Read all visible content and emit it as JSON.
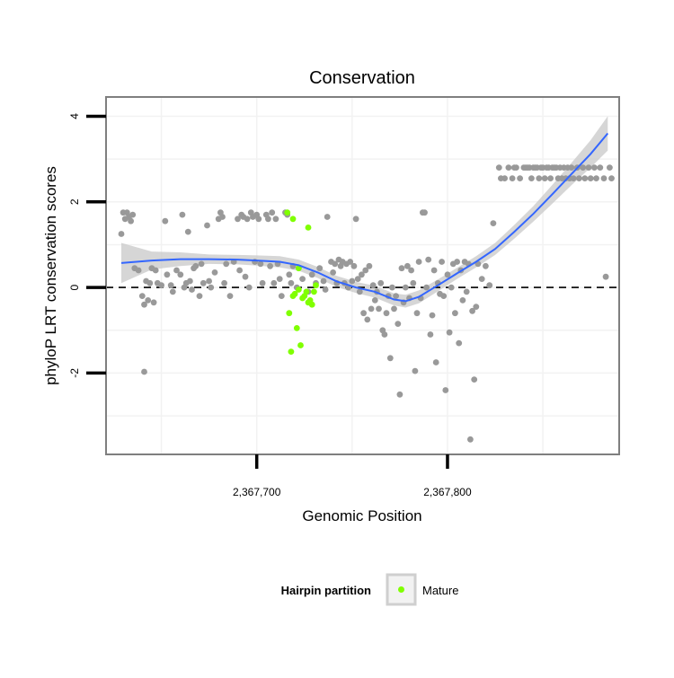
{
  "chart_data": {
    "type": "scatter",
    "title": "Conservation",
    "xlabel": "Genomic Position",
    "ylabel": "phyloP LRT conservation scores",
    "xlim": [
      2367621,
      2367890
    ],
    "ylim": [
      -3.9,
      4.45
    ],
    "x_ticks": [
      2367700,
      2367800
    ],
    "x_tick_labels": [
      "2,367,700",
      "2,367,800"
    ],
    "y_ticks": [
      -2,
      0,
      2,
      4
    ],
    "y_tick_labels": [
      "-2",
      "0",
      "2",
      "4"
    ],
    "reference_line": {
      "y": 0,
      "style": "dashed"
    },
    "grid": true,
    "legend": {
      "title": "Hairpin partition",
      "position": "bottom",
      "entries": [
        "Mature"
      ]
    },
    "colors": {
      "points": "#999999",
      "mature": "#80ff00",
      "smooth": "#3366ff",
      "ribbon": "#c8c8c8",
      "panel_border": "#7f7f7f",
      "grid": "#f2f2f2"
    },
    "series": [
      {
        "name": "",
        "color": "#999999",
        "points": [
          [
            2367630,
            1.75
          ],
          [
            2367631,
            1.6
          ],
          [
            2367632,
            1.75
          ],
          [
            2367633,
            1.65
          ],
          [
            2367634,
            1.55
          ],
          [
            2367635,
            1.7
          ],
          [
            2367629,
            1.25
          ],
          [
            2367636,
            0.45
          ],
          [
            2367638,
            0.4
          ],
          [
            2367640,
            -0.2
          ],
          [
            2367641,
            -0.4
          ],
          [
            2367642,
            0.15
          ],
          [
            2367643,
            -0.3
          ],
          [
            2367644,
            0.1
          ],
          [
            2367645,
            0.45
          ],
          [
            2367646,
            -0.35
          ],
          [
            2367647,
            0.4
          ],
          [
            2367648,
            0.1
          ],
          [
            2367650,
            0.05
          ],
          [
            2367652,
            1.55
          ],
          [
            2367653,
            0.3
          ],
          [
            2367655,
            0.05
          ],
          [
            2367656,
            -0.1
          ],
          [
            2367658,
            0.4
          ],
          [
            2367660,
            0.3
          ],
          [
            2367661,
            1.7
          ],
          [
            2367662,
            0.0
          ],
          [
            2367663,
            0.1
          ],
          [
            2367664,
            1.3
          ],
          [
            2367665,
            0.15
          ],
          [
            2367666,
            -0.05
          ],
          [
            2367667,
            0.45
          ],
          [
            2367668,
            0.5
          ],
          [
            2367670,
            -0.2
          ],
          [
            2367671,
            0.55
          ],
          [
            2367672,
            0.1
          ],
          [
            2367674,
            1.45
          ],
          [
            2367675,
            0.15
          ],
          [
            2367676,
            0.0
          ],
          [
            2367678,
            0.35
          ],
          [
            2367680,
            1.6
          ],
          [
            2367681,
            1.75
          ],
          [
            2367682,
            1.65
          ],
          [
            2367683,
            0.1
          ],
          [
            2367684,
            0.55
          ],
          [
            2367686,
            -0.2
          ],
          [
            2367688,
            0.6
          ],
          [
            2367690,
            1.6
          ],
          [
            2367691,
            0.4
          ],
          [
            2367692,
            1.7
          ],
          [
            2367693,
            1.65
          ],
          [
            2367694,
            0.25
          ],
          [
            2367695,
            1.6
          ],
          [
            2367696,
            0.0
          ],
          [
            2367697,
            1.75
          ],
          [
            2367698,
            1.65
          ],
          [
            2367699,
            0.6
          ],
          [
            2367700,
            1.7
          ],
          [
            2367701,
            1.6
          ],
          [
            2367702,
            0.55
          ],
          [
            2367703,
            0.1
          ],
          [
            2367705,
            1.7
          ],
          [
            2367706,
            1.6
          ],
          [
            2367707,
            0.5
          ],
          [
            2367708,
            1.75
          ],
          [
            2367709,
            0.1
          ],
          [
            2367710,
            1.6
          ],
          [
            2367711,
            0.55
          ],
          [
            2367712,
            0.2
          ],
          [
            2367713,
            -0.2
          ],
          [
            2367715,
            1.75
          ],
          [
            2367716,
            1.7
          ],
          [
            2367717,
            0.3
          ],
          [
            2367718,
            0.1
          ],
          [
            2367719,
            0.5
          ],
          [
            2367721,
            0.0
          ],
          [
            2367724,
            0.2
          ],
          [
            2367727,
            -0.1
          ],
          [
            2367729,
            0.3
          ],
          [
            2367731,
            0.1
          ],
          [
            2367733,
            0.45
          ],
          [
            2367735,
            0.15
          ],
          [
            2367736,
            -0.05
          ],
          [
            2367737,
            1.65
          ],
          [
            2367739,
            0.6
          ],
          [
            2367740,
            0.35
          ],
          [
            2367741,
            0.55
          ],
          [
            2367742,
            0.1
          ],
          [
            2367743,
            0.65
          ],
          [
            2367744,
            0.5
          ],
          [
            2367745,
            0.6
          ],
          [
            2367746,
            0.1
          ],
          [
            2367747,
            0.55
          ],
          [
            2367748,
            0.0
          ],
          [
            2367749,
            0.6
          ],
          [
            2367750,
            0.15
          ],
          [
            2367751,
            0.5
          ],
          [
            2367752,
            1.6
          ],
          [
            2367753,
            0.2
          ],
          [
            2367754,
            -0.1
          ],
          [
            2367755,
            0.3
          ],
          [
            2367756,
            -0.6
          ],
          [
            2367757,
            0.4
          ],
          [
            2367758,
            -0.75
          ],
          [
            2367759,
            0.5
          ],
          [
            2367760,
            -0.5
          ],
          [
            2367761,
            0.05
          ],
          [
            2367762,
            -0.3
          ],
          [
            2367763,
            -0.1
          ],
          [
            2367764,
            -0.5
          ],
          [
            2367765,
            0.1
          ],
          [
            2367766,
            -1.0
          ],
          [
            2367767,
            -1.1
          ],
          [
            2367768,
            -0.6
          ],
          [
            2367769,
            -0.2
          ],
          [
            2367770,
            -1.65
          ],
          [
            2367771,
            0.0
          ],
          [
            2367772,
            -0.5
          ],
          [
            2367773,
            -0.2
          ],
          [
            2367774,
            -0.85
          ],
          [
            2367775,
            -2.5
          ],
          [
            2367776,
            0.45
          ],
          [
            2367777,
            -0.35
          ],
          [
            2367778,
            0.0
          ],
          [
            2367779,
            0.5
          ],
          [
            2367780,
            -0.25
          ],
          [
            2367781,
            0.4
          ],
          [
            2367782,
            0.1
          ],
          [
            2367783,
            -1.95
          ],
          [
            2367784,
            -0.6
          ],
          [
            2367785,
            0.6
          ],
          [
            2367786,
            -0.25
          ],
          [
            2367787,
            1.75
          ],
          [
            2367788,
            1.75
          ],
          [
            2367789,
            0.0
          ],
          [
            2367790,
            0.65
          ],
          [
            2367791,
            -1.1
          ],
          [
            2367792,
            -0.65
          ],
          [
            2367793,
            0.4
          ],
          [
            2367794,
            -1.75
          ],
          [
            2367795,
            0.1
          ],
          [
            2367796,
            -0.15
          ],
          [
            2367797,
            0.6
          ],
          [
            2367798,
            -0.2
          ],
          [
            2367799,
            -2.4
          ],
          [
            2367800,
            0.3
          ],
          [
            2367801,
            -1.05
          ],
          [
            2367802,
            0.0
          ],
          [
            2367803,
            0.55
          ],
          [
            2367804,
            -0.6
          ],
          [
            2367805,
            0.6
          ],
          [
            2367806,
            -1.3
          ],
          [
            2367807,
            0.4
          ],
          [
            2367808,
            -0.3
          ],
          [
            2367809,
            0.6
          ],
          [
            2367810,
            -0.1
          ],
          [
            2367811,
            0.55
          ],
          [
            2367812,
            -3.55
          ],
          [
            2367813,
            -0.55
          ],
          [
            2367814,
            -2.15
          ],
          [
            2367815,
            -0.45
          ],
          [
            2367816,
            0.55
          ],
          [
            2367818,
            0.2
          ],
          [
            2367820,
            0.5
          ],
          [
            2367822,
            0.05
          ],
          [
            2367824,
            1.5
          ],
          [
            2367827,
            2.8
          ],
          [
            2367828,
            2.55
          ],
          [
            2367830,
            2.55
          ],
          [
            2367832,
            2.8
          ],
          [
            2367834,
            2.55
          ],
          [
            2367835,
            2.8
          ],
          [
            2367836,
            2.8
          ],
          [
            2367838,
            2.55
          ],
          [
            2367840,
            2.8
          ],
          [
            2367841,
            2.8
          ],
          [
            2367842,
            2.8
          ],
          [
            2367843,
            2.8
          ],
          [
            2367844,
            2.55
          ],
          [
            2367845,
            2.8
          ],
          [
            2367846,
            2.8
          ],
          [
            2367847,
            2.8
          ],
          [
            2367848,
            2.55
          ],
          [
            2367849,
            2.8
          ],
          [
            2367850,
            2.8
          ],
          [
            2367851,
            2.55
          ],
          [
            2367852,
            2.8
          ],
          [
            2367853,
            2.8
          ],
          [
            2367854,
            2.55
          ],
          [
            2367855,
            2.8
          ],
          [
            2367856,
            2.8
          ],
          [
            2367857,
            2.8
          ],
          [
            2367858,
            2.55
          ],
          [
            2367859,
            2.8
          ],
          [
            2367860,
            2.55
          ],
          [
            2367861,
            2.8
          ],
          [
            2367862,
            2.55
          ],
          [
            2367863,
            2.8
          ],
          [
            2367864,
            2.55
          ],
          [
            2367865,
            2.8
          ],
          [
            2367866,
            2.55
          ],
          [
            2367868,
            2.8
          ],
          [
            2367869,
            2.55
          ],
          [
            2367871,
            2.8
          ],
          [
            2367872,
            2.55
          ],
          [
            2367874,
            2.8
          ],
          [
            2367875,
            2.55
          ],
          [
            2367877,
            2.8
          ],
          [
            2367878,
            2.55
          ],
          [
            2367880,
            2.8
          ],
          [
            2367882,
            2.55
          ],
          [
            2367885,
            2.8
          ],
          [
            2367886,
            2.55
          ],
          [
            2367883,
            0.25
          ],
          [
            2367641,
            -1.97
          ]
        ]
      },
      {
        "name": "Mature",
        "color": "#80ff00",
        "points": [
          [
            2367716,
            1.75
          ],
          [
            2367719,
            1.6
          ],
          [
            2367727,
            1.4
          ],
          [
            2367722,
            0.45
          ],
          [
            2367717,
            -0.6
          ],
          [
            2367718,
            -1.5
          ],
          [
            2367721,
            -0.95
          ],
          [
            2367723,
            -1.35
          ],
          [
            2367719,
            -0.2
          ],
          [
            2367720,
            -0.15
          ],
          [
            2367722,
            -0.05
          ],
          [
            2367724,
            -0.25
          ],
          [
            2367726,
            -0.1
          ],
          [
            2367728,
            -0.3
          ],
          [
            2367729,
            -0.4
          ],
          [
            2367730,
            -0.1
          ],
          [
            2367731,
            0.05
          ],
          [
            2367727,
            -0.35
          ],
          [
            2367725,
            -0.2
          ]
        ]
      }
    ],
    "smooth": {
      "name": "",
      "color": "#3366ff",
      "x": [
        2367629,
        2367645,
        2367660,
        2367675,
        2367690,
        2367700,
        2367712,
        2367722,
        2367732,
        2367742,
        2367752,
        2367762,
        2367772,
        2367778,
        2367785,
        2367795,
        2367805,
        2367815,
        2367825,
        2367835,
        2367845,
        2367855,
        2367865,
        2367875,
        2367884
      ],
      "y": [
        0.57,
        0.63,
        0.66,
        0.66,
        0.65,
        0.63,
        0.6,
        0.52,
        0.35,
        0.14,
        0.0,
        -0.1,
        -0.28,
        -0.32,
        -0.22,
        0.05,
        0.33,
        0.6,
        0.9,
        1.3,
        1.72,
        2.18,
        2.65,
        3.12,
        3.6
      ],
      "lower": [
        0.1,
        0.42,
        0.5,
        0.55,
        0.54,
        0.51,
        0.47,
        0.39,
        0.22,
        0.01,
        -0.13,
        -0.24,
        -0.42,
        -0.47,
        -0.37,
        -0.09,
        0.2,
        0.47,
        0.76,
        1.14,
        1.54,
        1.96,
        2.39,
        2.8,
        3.2
      ],
      "upper": [
        1.04,
        0.84,
        0.82,
        0.77,
        0.76,
        0.75,
        0.73,
        0.65,
        0.48,
        0.27,
        0.13,
        0.04,
        -0.14,
        -0.17,
        -0.07,
        0.19,
        0.46,
        0.73,
        1.04,
        1.46,
        1.9,
        2.4,
        2.91,
        3.44,
        4.0
      ]
    }
  }
}
